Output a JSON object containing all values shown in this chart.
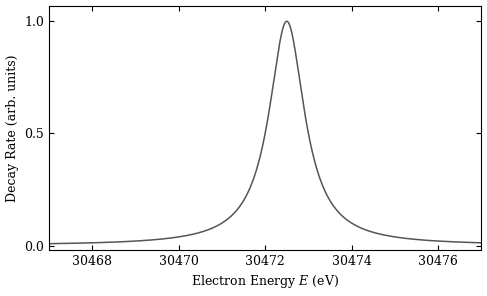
{
  "E0": 30472.5,
  "Gamma": 1.0,
  "E_min": 30467.0,
  "E_max": 30477.0,
  "ylim": [
    -0.02,
    1.07
  ],
  "yticks": [
    0.0,
    0.5,
    1.0
  ],
  "xticks": [
    30468,
    30470,
    30472,
    30474,
    30476
  ],
  "xlabel": "Electron Energy $E$ (eV)",
  "ylabel": "Decay Rate (arb. units)",
  "line_color": "#555555",
  "line_width": 1.1,
  "background_color": "#ffffff",
  "num_points": 5000,
  "figsize": [
    4.87,
    2.96
  ],
  "dpi": 100
}
